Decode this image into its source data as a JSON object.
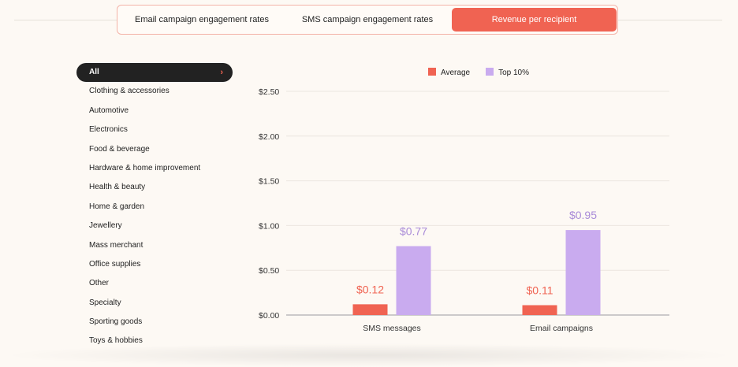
{
  "tabs": [
    {
      "label": "Email campaign engagement rates",
      "active": false
    },
    {
      "label": "SMS campaign engagement rates",
      "active": false
    },
    {
      "label": "Revenue per recipient",
      "active": true
    }
  ],
  "sidebar": {
    "items": [
      "All",
      "Clothing & accessories",
      "Automotive",
      "Electronics",
      "Food & beverage",
      "Hardware & home improvement",
      "Health & beauty",
      "Home & garden",
      "Jewellery",
      "Mass merchant",
      "Office supplies",
      "Other",
      "Specialty",
      "Sporting goods",
      "Toys & hobbies"
    ],
    "active": "All",
    "active_icon": "chevron-right-icon"
  },
  "chart_data": {
    "type": "bar",
    "categories": [
      "SMS messages",
      "Email campaigns"
    ],
    "series": [
      {
        "name": "Average",
        "values": [
          0.12,
          0.11
        ],
        "labels": [
          "$0.12",
          "$0.11"
        ],
        "color": "#f06352"
      },
      {
        "name": "Top 10%",
        "values": [
          0.77,
          0.95
        ],
        "labels": [
          "$0.77",
          "$0.95"
        ],
        "color": "#c9abef"
      }
    ],
    "yticks": [
      "$0.00",
      "$0.50",
      "$1.00",
      "$1.50",
      "$2.00",
      "$2.50"
    ],
    "ylim": [
      0,
      2.5
    ],
    "grid": true,
    "legend": "top"
  },
  "colors": {
    "accent": "#f06352",
    "top10": "#c9abef",
    "top10_label": "#a98bd8"
  }
}
